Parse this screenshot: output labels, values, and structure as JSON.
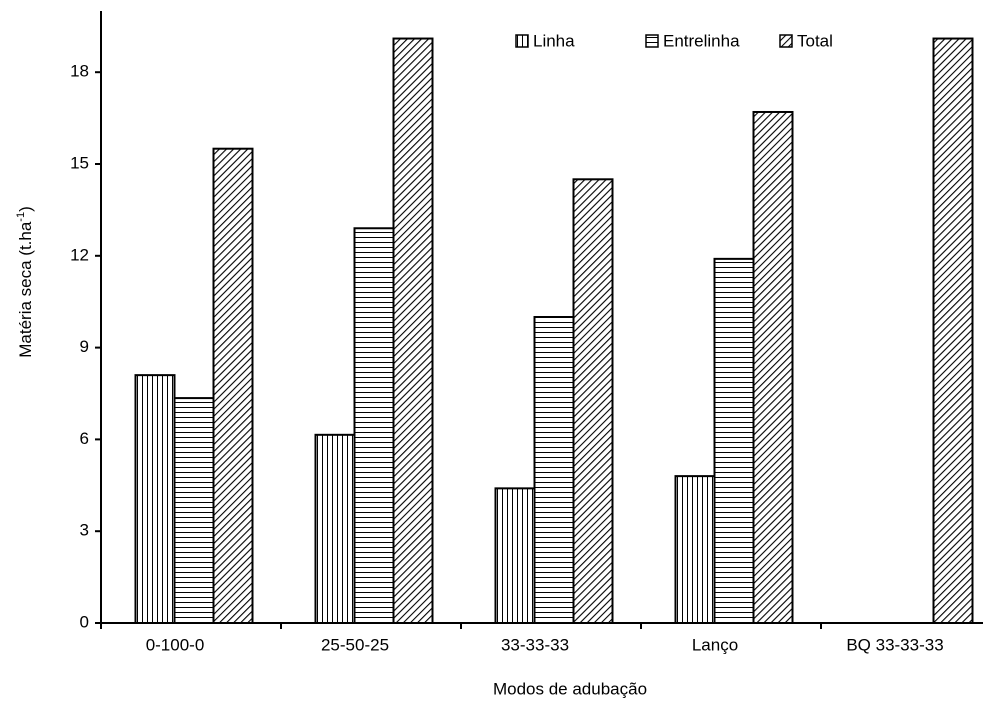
{
  "chart_data": {
    "type": "bar",
    "x_label": "Modos de adubação",
    "y_label": "Matéria seca (t.ha",
    "y_label_sup": "-1",
    "y_label_end": ")",
    "categories": [
      "0-100-0",
      "25-50-25",
      "33-33-33",
      "Lanço",
      "BQ 33-33-33"
    ],
    "series": [
      {
        "name": "Linha",
        "color": "#000000",
        "pattern": "vertical",
        "values": [
          8.1,
          6.15,
          4.4,
          4.8,
          null
        ]
      },
      {
        "name": "Entrelinha",
        "color": "#000000",
        "pattern": "horizontal",
        "values": [
          7.35,
          12.9,
          10.0,
          11.9,
          null
        ]
      },
      {
        "name": "Total",
        "color": "#000000",
        "pattern": "diagonal",
        "values": [
          15.5,
          19.1,
          14.5,
          16.7,
          19.1
        ]
      }
    ],
    "ylim": [
      0,
      20
    ],
    "yticks": [
      0,
      3,
      6,
      9,
      12,
      15,
      18
    ],
    "legend": "top-right"
  }
}
